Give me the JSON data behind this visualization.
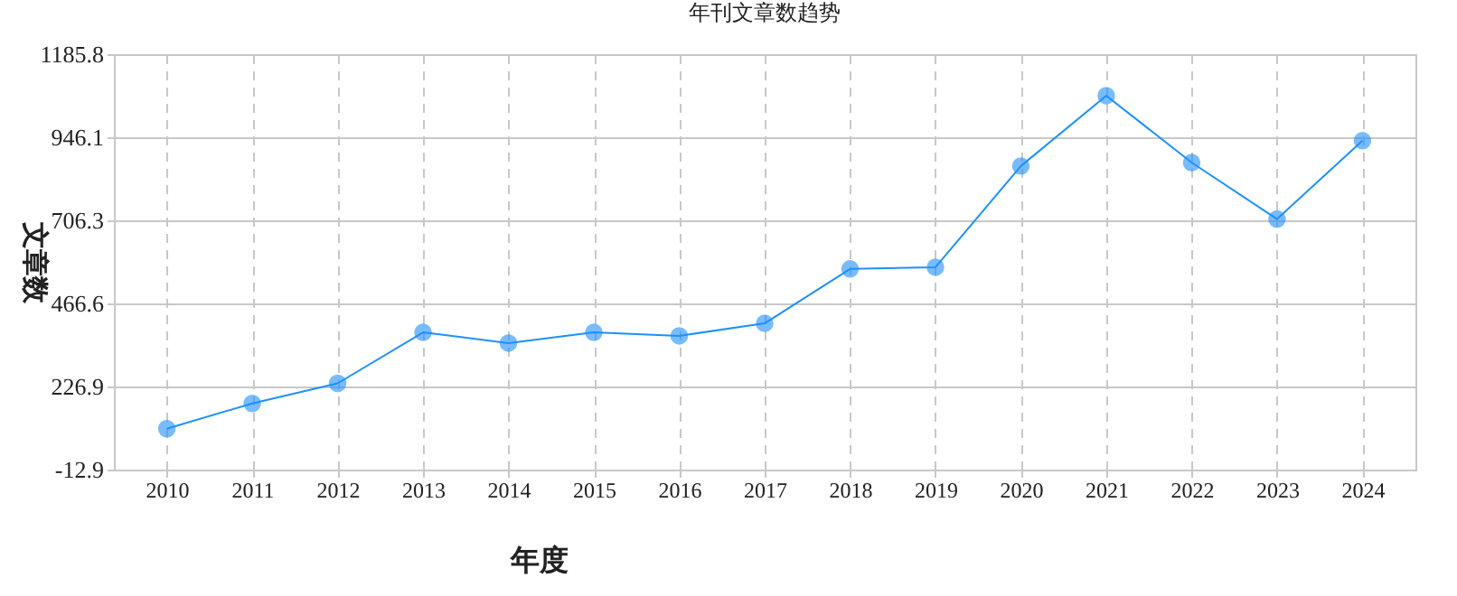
{
  "chart_data": {
    "type": "line",
    "title": "年刊文章数趋势",
    "xlabel": "年度",
    "ylabel": "文章数",
    "categories": [
      "2010",
      "2011",
      "2012",
      "2013",
      "2014",
      "2015",
      "2016",
      "2017",
      "2018",
      "2019",
      "2020",
      "2021",
      "2022",
      "2023",
      "2024"
    ],
    "series": [
      {
        "color": "#1e90ff",
        "values": [
          105,
          178,
          236,
          383,
          352,
          383,
          373,
          409,
          566,
          571,
          863,
          1066,
          873,
          710,
          936
        ]
      }
    ],
    "ylim": [
      -12.9,
      1185.8
    ],
    "yticks": [
      -12.9,
      226.9,
      466.6,
      706.3,
      946.1,
      1185.8
    ],
    "grid": true,
    "marker": "circle",
    "line_style": "solid"
  }
}
